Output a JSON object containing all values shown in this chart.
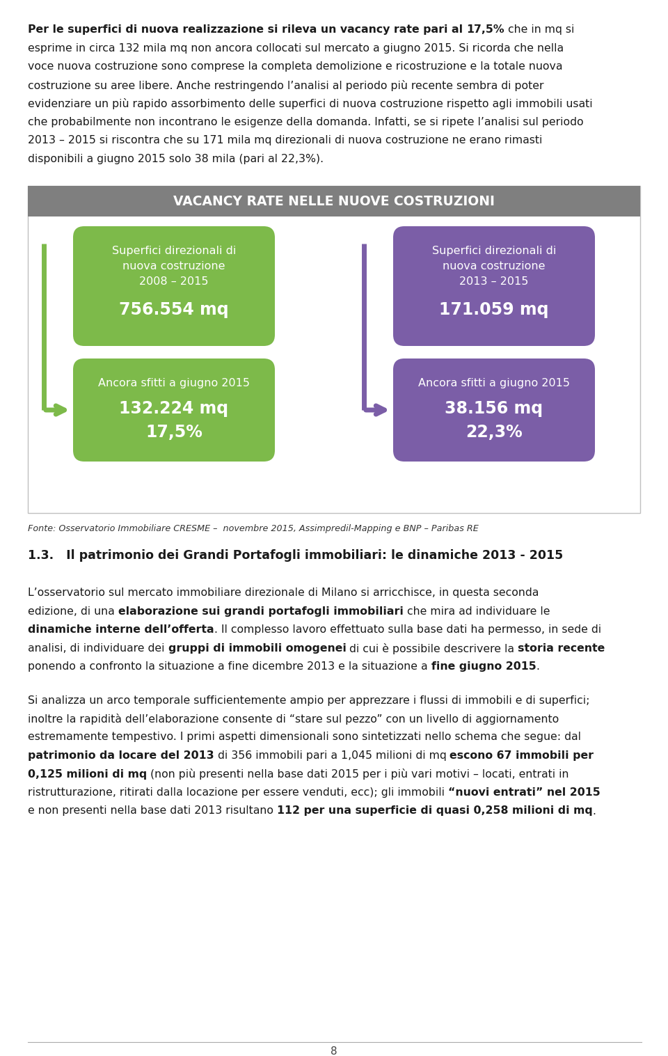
{
  "bg_color": "#ffffff",
  "infographic_title": "VACANCY RATE NELLE NUOVE COSTRUZIONI",
  "infographic_title_bg": "#7f7f7f",
  "box_left_top_bg": "#7dba4a",
  "box_right_top_bg": "#7b5ea7",
  "arrow_left_color": "#7dba4a",
  "arrow_right_color": "#7b5ea7",
  "box_left_top_line1": "Superfici direzionali di",
  "box_left_top_line2": "nuova costruzione",
  "box_left_top_line3": "2008 – 2015",
  "box_left_top_value": "756.554 mq",
  "box_right_top_line1": "Superfici direzionali di",
  "box_right_top_line2": "nuova costruzione",
  "box_right_top_line3": "2013 – 2015",
  "box_right_top_value": "171.059 mq",
  "box_left_bottom_line1": "Ancora sfitti a giugno 2015",
  "box_left_bottom_value1": "132.224 mq",
  "box_left_bottom_value2": "17,5%",
  "box_right_bottom_line1": "Ancora sfitti a giugno 2015",
  "box_right_bottom_value1": "38.156 mq",
  "box_right_bottom_value2": "22,3%",
  "fonte_text": "Fonte: Osservatorio Immobiliare CRESME –  novembre 2015, Assimpredil-Mapping e BNP – Paribas RE",
  "section_title": "1.3.   Il patrimonio dei Grandi Portafogli immobiliari: le dinamiche 2013 - 2015",
  "page_number": "8"
}
